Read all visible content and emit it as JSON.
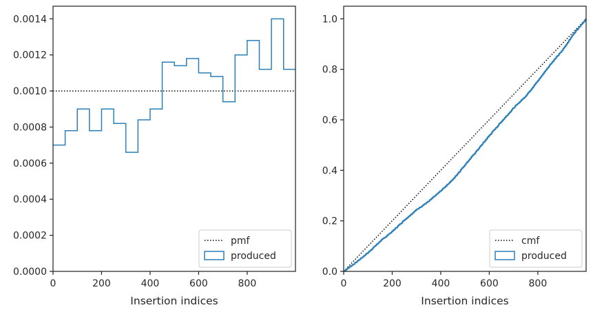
{
  "chart_data": [
    {
      "type": "histogram",
      "xlabel": "Insertion indices",
      "ylabel": "",
      "xlim": [
        0,
        999
      ],
      "ylim": [
        0,
        0.00147
      ],
      "xticks": [
        0,
        200,
        400,
        600,
        800
      ],
      "xtick_labels": [
        "0",
        "200",
        "400",
        "600",
        "800"
      ],
      "yticks": [
        0,
        0.0002,
        0.0004,
        0.0006,
        0.0008,
        0.001,
        0.0012,
        0.0014
      ],
      "ytick_labels": [
        "0.0000",
        "0.0002",
        "0.0004",
        "0.0006",
        "0.0008",
        "0.0010",
        "0.0012",
        "0.0014"
      ],
      "grid": false,
      "legend": {
        "position": "lower-right",
        "entries": [
          "pmf",
          "produced"
        ]
      },
      "series": [
        {
          "name": "pmf",
          "style": "dotted",
          "color": "#000000",
          "x": [
            0,
            999
          ],
          "y": [
            0.001,
            0.001
          ]
        },
        {
          "name": "produced",
          "style": "step-histogram",
          "color": "#2a7fb8",
          "bin_edges": [
            0,
            50,
            100,
            150,
            200,
            250,
            300,
            350,
            400,
            450,
            500,
            550,
            600,
            650,
            700,
            750,
            800,
            850,
            900,
            950,
            999
          ],
          "values": [
            0.0007,
            0.00078,
            0.0009,
            0.00078,
            0.0009,
            0.00082,
            0.00066,
            0.00084,
            0.0009,
            0.00116,
            0.00114,
            0.00118,
            0.0011,
            0.00108,
            0.00094,
            0.0012,
            0.00128,
            0.00112,
            0.0014,
            0.00112
          ]
        }
      ]
    },
    {
      "type": "line",
      "xlabel": "Insertion indices",
      "ylabel": "",
      "xlim": [
        0,
        999
      ],
      "ylim": [
        0,
        1.05
      ],
      "xticks": [
        0,
        200,
        400,
        600,
        800
      ],
      "xtick_labels": [
        "0",
        "200",
        "400",
        "600",
        "800"
      ],
      "yticks": [
        0,
        0.2,
        0.4,
        0.6,
        0.8,
        1.0
      ],
      "ytick_labels": [
        "0.0",
        "0.2",
        "0.4",
        "0.6",
        "0.8",
        "1.0"
      ],
      "grid": false,
      "legend": {
        "position": "lower-right",
        "entries": [
          "cmf",
          "produced"
        ]
      },
      "series": [
        {
          "name": "cmf",
          "style": "dotted",
          "color": "#000000",
          "x": [
            0,
            999
          ],
          "y": [
            0,
            1.0
          ]
        },
        {
          "name": "produced",
          "style": "step-line",
          "color": "#2a7fb8",
          "x": [
            0,
            50,
            100,
            150,
            200,
            250,
            300,
            350,
            400,
            450,
            500,
            550,
            600,
            650,
            700,
            750,
            800,
            850,
            900,
            950,
            999
          ],
          "y": [
            0,
            0.035,
            0.074,
            0.119,
            0.158,
            0.203,
            0.244,
            0.277,
            0.319,
            0.364,
            0.422,
            0.479,
            0.538,
            0.593,
            0.647,
            0.694,
            0.754,
            0.818,
            0.874,
            0.944,
            1.0
          ]
        }
      ]
    }
  ],
  "colors": {
    "produced": "#2a7fb8",
    "reference": "#000000",
    "axes": "#262626"
  }
}
